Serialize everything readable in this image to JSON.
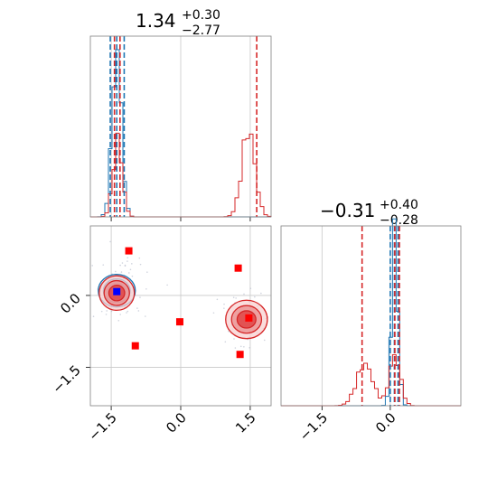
{
  "chart_data": [
    {
      "panel": "hist-param-1",
      "type": "histogram",
      "title": {
        "value": "1.34",
        "plus": "+0.30",
        "minus": "−2.77"
      },
      "xlim": [
        -1.95,
        1.95
      ],
      "xticks": [
        -1.5,
        0.0,
        1.5
      ],
      "grid": true,
      "series": [
        {
          "color": "#1f77b4",
          "peaks": [
            {
              "center": -1.38,
              "width": 0.1,
              "height": 0.93
            }
          ]
        },
        {
          "color": "#d62728",
          "peaks": [
            {
              "center": -1.36,
              "width": 0.1,
              "height": 0.42
            },
            {
              "center": 1.46,
              "width": 0.14,
              "height": 0.48
            }
          ]
        }
      ],
      "quantile_lines": [
        {
          "color": "#1f77b4",
          "x": [
            -1.52,
            -1.38,
            -1.22
          ]
        },
        {
          "color": "#d62728",
          "x": [
            -1.43,
            -1.31,
            1.64
          ]
        }
      ]
    },
    {
      "panel": "hist-param-2",
      "type": "histogram",
      "title": {
        "value": "−0.31",
        "plus": "+0.40",
        "minus": "−0.28"
      },
      "xlim": [
        -2.4,
        1.55
      ],
      "xticks": [
        -1.5,
        0.0
      ],
      "grid": true,
      "series": [
        {
          "color": "#1f77b4",
          "peaks": [
            {
              "center": 0.1,
              "width": 0.07,
              "height": 0.95
            }
          ]
        },
        {
          "color": "#d62728",
          "peaks": [
            {
              "center": -0.56,
              "width": 0.18,
              "height": 0.23
            },
            {
              "center": 0.1,
              "width": 0.12,
              "height": 0.28
            }
          ]
        }
      ],
      "quantile_lines": [
        {
          "color": "#1f77b4",
          "x": [
            0.0,
            0.09,
            0.17
          ]
        },
        {
          "color": "#d62728",
          "x": [
            -0.62,
            0.1,
            0.2
          ]
        }
      ]
    },
    {
      "panel": "scatter-2d",
      "type": "contour-scatter",
      "xlim": [
        -1.95,
        1.95
      ],
      "ylim": [
        -2.3,
        1.45
      ],
      "xticks": [
        -1.5,
        0.0,
        1.5
      ],
      "yticks": [
        -1.5,
        0.0
      ],
      "grid": true,
      "contours": [
        {
          "color": "#1f77b4",
          "center": [
            -1.38,
            0.1
          ],
          "radii": [
            0.4,
            0.34
          ]
        },
        {
          "color": "#d62728",
          "center": [
            -1.38,
            0.05
          ],
          "radii": [
            0.38,
            0.36
          ]
        },
        {
          "color": "#d62728",
          "center": [
            1.42,
            -0.5
          ],
          "radii": [
            0.45,
            0.4
          ]
        }
      ],
      "markers": [
        {
          "color": "#ff0000",
          "shape": "square",
          "points": [
            [
              -1.12,
              0.93
            ],
            [
              1.24,
              0.57
            ],
            [
              -0.98,
              -1.05
            ],
            [
              -0.02,
              -0.55
            ],
            [
              1.28,
              -1.23
            ],
            [
              1.47,
              -0.47
            ]
          ]
        },
        {
          "color": "#0000ff",
          "shape": "square",
          "points": [
            [
              -1.38,
              0.08
            ]
          ]
        }
      ]
    }
  ]
}
